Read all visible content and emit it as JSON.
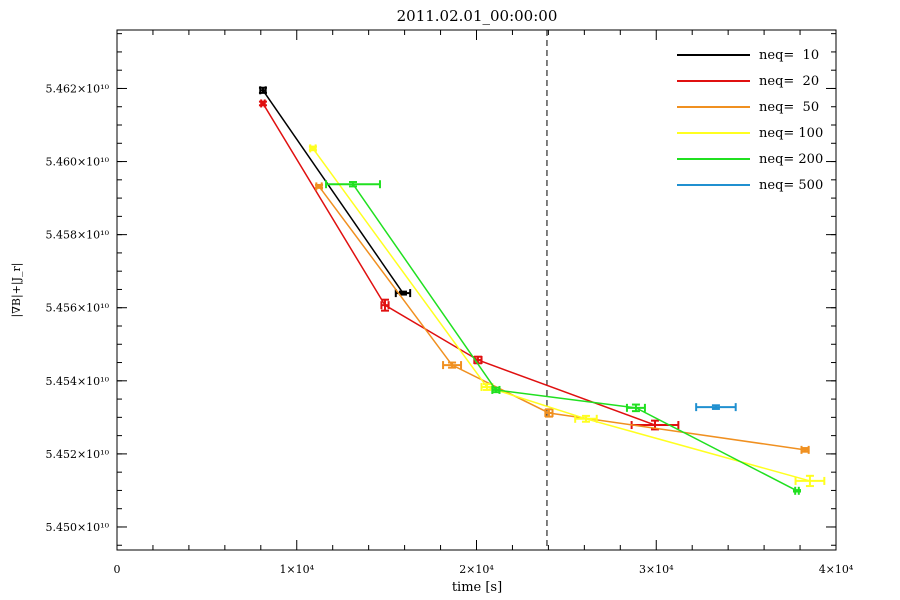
{
  "chart_data": {
    "type": "line",
    "title": "2011.02.01_00:00:00",
    "xlabel": "time [s]",
    "ylabel": "|∇B|+|J_r|",
    "xlim": [
      0,
      40000
    ],
    "ylim": [
      54493700000.0,
      54636000000.0
    ],
    "xticks": [
      {
        "v": 0,
        "label": "0"
      },
      {
        "v": 10000,
        "label": "1×10⁴"
      },
      {
        "v": 20000,
        "label": "2×10⁴"
      },
      {
        "v": 30000,
        "label": "3×10⁴"
      },
      {
        "v": 40000,
        "label": "4×10⁴"
      }
    ],
    "yticks": [
      {
        "v": 54500000000.0,
        "label": "5.450×10¹⁰"
      },
      {
        "v": 54520000000.0,
        "label": "5.452×10¹⁰"
      },
      {
        "v": 54540000000.0,
        "label": "5.454×10¹⁰"
      },
      {
        "v": 54560000000.0,
        "label": "5.456×10¹⁰"
      },
      {
        "v": 54580000000.0,
        "label": "5.458×10¹⁰"
      },
      {
        "v": 54600000000.0,
        "label": "5.460×10¹⁰"
      },
      {
        "v": 54620000000.0,
        "label": "5.462×10¹⁰"
      }
    ],
    "vline": 23920,
    "legend_position": "top-right",
    "series": [
      {
        "name": "neq=  10",
        "color": "#000000",
        "points": [
          [
            8120,
            54619500000.0,
            150,
            700000.0
          ],
          [
            15910,
            54564000000.0,
            400,
            400000.0
          ]
        ]
      },
      {
        "name": "neq=  20",
        "color": "#e01010",
        "points": [
          [
            8120,
            54615900000.0,
            100,
            500000.0
          ],
          [
            14910,
            54560700000.0,
            200,
            1500000.0
          ],
          [
            20080,
            54545700000.0,
            200,
            900000.0
          ],
          [
            29930,
            54527900000.0,
            1300,
            1200000.0
          ]
        ]
      },
      {
        "name": "neq=  50",
        "color": "#f09020",
        "points": [
          [
            11240,
            54593200000.0,
            150,
            400000.0
          ],
          [
            18640,
            54544300000.0,
            500,
            700000.0
          ],
          [
            24030,
            54531200000.0,
            200,
            1000000.0
          ],
          [
            38280,
            54521100000.0,
            200,
            500000.0
          ]
        ]
      },
      {
        "name": "neq= 100",
        "color": "#ffff20",
        "points": [
          [
            10900,
            54603600000.0,
            150,
            500000.0
          ],
          [
            20580,
            54538300000.0,
            300,
            800000.0
          ],
          [
            26090,
            54529600000.0,
            600,
            800000.0
          ],
          [
            38550,
            54512600000.0,
            800,
            1400000.0
          ]
        ]
      },
      {
        "name": "neq= 200",
        "color": "#20e020",
        "points": [
          [
            13130,
            54593800000.0,
            1500,
            600000.0
          ],
          [
            21080,
            54537500000.0,
            200,
            600000.0
          ],
          [
            28870,
            54532600000.0,
            500,
            900000.0
          ],
          [
            37830,
            54509900000.0,
            100,
            200000.0
          ]
        ]
      },
      {
        "name": "neq= 500",
        "color": "#2090d0",
        "points": [
          [
            33320,
            54532800000.0,
            1100,
            500000.0
          ]
        ]
      }
    ]
  }
}
